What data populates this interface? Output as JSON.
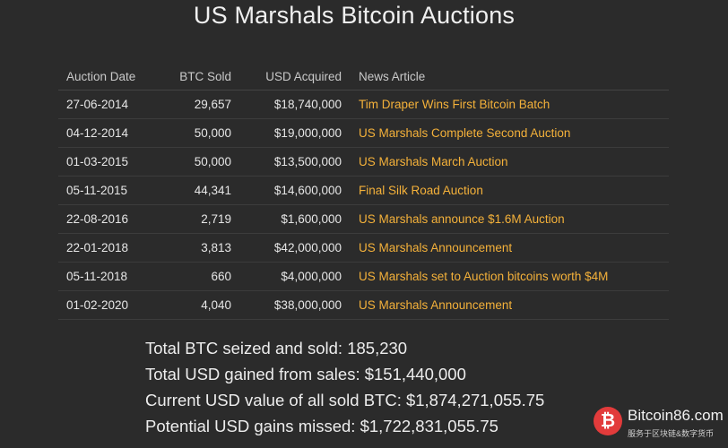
{
  "title": "US Marshals Bitcoin Auctions",
  "table": {
    "headers": {
      "date": "Auction Date",
      "btc": "BTC Sold",
      "usd": "USD Acquired",
      "news": "News Article"
    },
    "rows": [
      {
        "date": "27-06-2014",
        "btc": "29,657",
        "usd": "$18,740,000",
        "news": "Tim Draper Wins First Bitcoin Batch"
      },
      {
        "date": "04-12-2014",
        "btc": "50,000",
        "usd": "$19,000,000",
        "news": "US Marshals Complete Second Auction"
      },
      {
        "date": "01-03-2015",
        "btc": "50,000",
        "usd": "$13,500,000",
        "news": "US Marshals March Auction"
      },
      {
        "date": "05-11-2015",
        "btc": "44,341",
        "usd": "$14,600,000",
        "news": "Final Silk Road Auction"
      },
      {
        "date": "22-08-2016",
        "btc": "2,719",
        "usd": "$1,600,000",
        "news": "US Marshals announce $1.6M Auction"
      },
      {
        "date": "22-01-2018",
        "btc": "3,813",
        "usd": "$42,000,000",
        "news": "US Marshals Announcement"
      },
      {
        "date": "05-11-2018",
        "btc": "660",
        "usd": "$4,000,000",
        "news": "US Marshals set to Auction bitcoins worth $4M"
      },
      {
        "date": "01-02-2020",
        "btc": "4,040",
        "usd": "$38,000,000",
        "news": "US Marshals Announcement"
      }
    ]
  },
  "summary": {
    "total_btc": "Total BTC seized and sold: 185,230",
    "total_usd": "Total USD gained from sales: $151,440,000",
    "current_value": "Current USD value of all sold BTC: $1,874,271,055.75",
    "missed": "Potential USD gains missed: $1,722,831,055.75"
  },
  "watermark": {
    "logo_glyph": "₿",
    "name": "Bitcoin86.com",
    "tagline": "服务于区块链&数字货币",
    "color": "#e23b3b"
  },
  "colors": {
    "background": "#2b2b2b",
    "link": "#f4b13a"
  }
}
